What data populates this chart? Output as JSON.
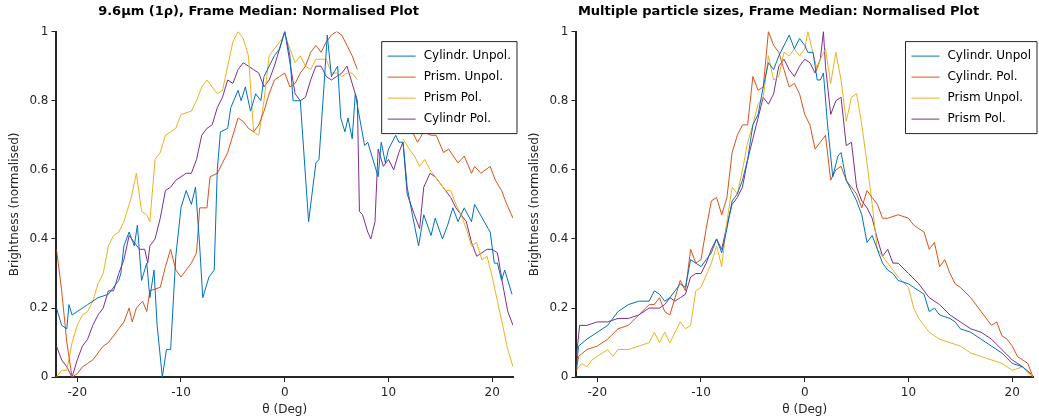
{
  "chart_data": [
    {
      "type": "line",
      "title": "9.6μm (1ρ), Frame Median: Normalised Plot",
      "xlabel": "θ (Deg)",
      "ylabel": "Brightness (normalised)",
      "xlim": [
        -22,
        22
      ],
      "xticks": [
        -20,
        -10,
        0,
        10,
        20
      ],
      "ylim": [
        0,
        1
      ],
      "yticks": [
        0,
        0.2,
        0.4,
        0.6,
        0.8,
        1
      ],
      "grid": false,
      "legend": "top right",
      "series": [
        {
          "name": "Cylindr. Unpol.",
          "color": "#0072bd",
          "x": [
            -22,
            -21.5,
            -21,
            -20.8,
            -20.5,
            -20,
            -19,
            -18,
            -17,
            -16,
            -15.8,
            -15.5,
            -15,
            -14.5,
            -14.2,
            -13.8,
            -13.3,
            -13,
            -12.6,
            -12.3,
            -11.8,
            -11.4,
            -11,
            -10.5,
            -10,
            -9.5,
            -9,
            -8.6,
            -8.2,
            -7.9,
            -7.3,
            -6.8,
            -6.5,
            -6.2,
            -5.5,
            -5.2,
            -4.5,
            -4.2,
            -3.8,
            -3.3,
            -2.8,
            -2.3,
            -2,
            -1,
            -0.5,
            0,
            0.5,
            0.8,
            1.5,
            2.3,
            3,
            3.3,
            3.8,
            4.1,
            4.5,
            5.1,
            5.4,
            5.8,
            6.1,
            6.5,
            6.8,
            7.7,
            8,
            8.8,
            9,
            9.3,
            9.7,
            10,
            10.7,
            11,
            11.4,
            11.8,
            12.3,
            12.9,
            13.4,
            14.1,
            14.5,
            15.2,
            15.7,
            16.2,
            16.7,
            17.3,
            18,
            18.3,
            19.6,
            19.8,
            20.2,
            20.5,
            20.9,
            21.2,
            21.9
          ],
          "values": [
            0.2,
            0.15,
            0.14,
            0.21,
            0.18,
            0.19,
            0.21,
            0.23,
            0.24,
            0.28,
            0.3,
            0.38,
            0.42,
            0.38,
            0.44,
            0.28,
            0.33,
            0.23,
            0.31,
            0.15,
            0,
            0.08,
            0.08,
            0.35,
            0.49,
            0.54,
            0.5,
            0.55,
            0.38,
            0.23,
            0.29,
            0.31,
            0.6,
            0.71,
            0.72,
            0.78,
            0.83,
            0.8,
            0.84,
            0.77,
            0.82,
            0.8,
            0.87,
            0.93,
            0.95,
            1,
            0.93,
            0.8,
            0.8,
            0.45,
            0.62,
            0.63,
            0.85,
            0.99,
            0.87,
            0.9,
            0.75,
            0.71,
            0.75,
            0.69,
            0.82,
            0.67,
            0.68,
            0.6,
            0.58,
            0.68,
            0.62,
            0.66,
            0.7,
            0.68,
            0.68,
            0.55,
            0.47,
            0.38,
            0.47,
            0.41,
            0.46,
            0.4,
            0.44,
            0.49,
            0.45,
            0.49,
            0.45,
            0.5,
            0.43,
            0.42,
            0.33,
            0.33,
            0.28,
            0.31,
            0.24
          ]
        },
        {
          "name": "Prism. Unpol.",
          "color": "#d95319",
          "x": [
            -22,
            -21.5,
            -21,
            -20.5,
            -20,
            -19.5,
            -19,
            -18.5,
            -18,
            -17.5,
            -17,
            -16.5,
            -16,
            -15.5,
            -15,
            -14.7,
            -14.3,
            -13.7,
            -13.3,
            -13,
            -12,
            -11.5,
            -11,
            -10.5,
            -10,
            -9.5,
            -9,
            -8.5,
            -8.2,
            -7.5,
            -7.2,
            -6.5,
            -6,
            -5.5,
            -5,
            -4.5,
            -4,
            -3.5,
            -3,
            -2.5,
            -2,
            -1.5,
            -1,
            -0.5,
            0,
            0.5,
            1,
            1.5,
            2,
            2.5,
            3,
            3.5,
            4,
            4.5,
            5,
            5.5,
            6,
            6.5,
            7,
            8,
            9,
            10,
            11,
            12.3,
            12.8,
            13.4,
            14.1,
            14.6,
            15.3,
            15.8,
            16.7,
            17.3,
            18,
            18.3,
            18.9,
            19.8,
            20.3,
            20.9,
            21.4,
            22
          ],
          "values": [
            0.37,
            0.25,
            0.1,
            0,
            0.01,
            0.03,
            0.04,
            0.05,
            0.07,
            0.09,
            0.1,
            0.12,
            0.14,
            0.16,
            0.2,
            0.16,
            0.2,
            0.22,
            0.19,
            0.25,
            0.26,
            0.32,
            0.37,
            0.31,
            0.29,
            0.31,
            0.33,
            0.36,
            0.49,
            0.49,
            0.58,
            0.59,
            0.62,
            0.65,
            0.7,
            0.75,
            0.74,
            0.72,
            0.71,
            0.73,
            0.77,
            0.82,
            0.86,
            0.87,
            0.88,
            0.84,
            0.85,
            0.88,
            0.9,
            0.94,
            0.96,
            0.94,
            0.97,
            0.99,
            1,
            0.99,
            0.96,
            0.93,
            0.89,
            null,
            null,
            null,
            null,
            0.71,
            0.68,
            0.71,
            0.7,
            0.7,
            0.65,
            0.66,
            0.62,
            0.64,
            0.59,
            0.61,
            0.59,
            0.61,
            0.57,
            0.54,
            0.5,
            0.46
          ]
        },
        {
          "name": "Prism Pol.",
          "color": "#edb120",
          "x": [
            -22,
            -21.5,
            -21,
            -20.5,
            -20,
            -19.5,
            -19,
            -18.5,
            -18,
            -17.5,
            -17,
            -16.5,
            -16,
            -15.5,
            -15,
            -14.8,
            -14.3,
            -13.8,
            -13.3,
            -13,
            -12.5,
            -12,
            -11.5,
            -11,
            -10.5,
            -10,
            -9,
            -8.5,
            -8,
            -7.5,
            -7,
            -6.5,
            -6,
            -5.5,
            -5,
            -4.5,
            -4,
            -3.5,
            -3,
            -2.5,
            -2,
            -1.5,
            -1,
            -0.5,
            0,
            0.5,
            1,
            1.5,
            2,
            2.5,
            3,
            3.5,
            4,
            4.5,
            5,
            5.5,
            6,
            6.5,
            7,
            8,
            9,
            10,
            11.4,
            12,
            12.5,
            13,
            13.5,
            14,
            14.5,
            15,
            15.5,
            16,
            16.5,
            17,
            17.5,
            18,
            18.5,
            19,
            19.5,
            20,
            20.5,
            21,
            21.5,
            22
          ],
          "values": [
            0,
            0.02,
            0.02,
            0.1,
            0.15,
            0.18,
            0.19,
            0.22,
            0.27,
            0.3,
            0.38,
            0.41,
            0.42,
            0.45,
            0.5,
            0.52,
            0.59,
            0.48,
            0.47,
            0.45,
            0.63,
            0.65,
            0.7,
            0.71,
            0.72,
            0.76,
            0.77,
            0.8,
            0.84,
            0.86,
            0.84,
            0.82,
            0.83,
            0.9,
            0.97,
            1,
            0.98,
            0.93,
            0.71,
            0.7,
            0.8,
            0.93,
            0.95,
            0.97,
            0.99,
            0.95,
            0.91,
            0.93,
            0.9,
            0.89,
            0.92,
            0.92,
            0.92,
            0.88,
            0.88,
            0.87,
            0.88,
            0.88,
            0.86,
            null,
            null,
            null,
            0.69,
            0.66,
            0.64,
            0.61,
            0.63,
            0.6,
            0.58,
            0.56,
            0.54,
            0.54,
            0.5,
            0.47,
            0.43,
            0.38,
            0.39,
            0.34,
            0.35,
            0.29,
            0.22,
            0.15,
            0.08,
            0.03
          ]
        },
        {
          "name": "Cylindr Pol.",
          "color": "#7e2f8e",
          "x": [
            -22,
            -21.5,
            -21,
            -20.5,
            -20,
            -19.5,
            -19,
            -18.5,
            -18,
            -17.5,
            -17,
            -16.5,
            -16,
            -15.5,
            -15,
            -14.5,
            -14,
            -13.5,
            -13.2,
            -13,
            -12.5,
            -12,
            -11.5,
            -11,
            -10.5,
            -10,
            -9.5,
            -9,
            -8.5,
            -8,
            -7.5,
            -7,
            -6.5,
            -6,
            -5.5,
            -5,
            -4.5,
            -4,
            -3.5,
            -3,
            -2.5,
            -2,
            -1.5,
            -1,
            -0.5,
            0,
            0.5,
            1,
            1.5,
            2,
            2.5,
            3,
            3.5,
            4,
            4.5,
            5,
            5.5,
            6,
            6.5,
            7,
            7.2,
            7.5,
            8,
            8.3,
            8.7,
            9,
            9.5,
            10,
            10.5,
            11,
            11.4,
            11.8,
            12.5,
            13,
            13.4,
            14,
            14.5,
            15,
            15.5,
            16,
            16.5,
            17,
            17.5,
            18,
            18.5,
            19,
            19.5,
            20,
            20.5,
            21,
            21.5,
            22
          ],
          "values": [
            0.09,
            0.05,
            0.03,
            0,
            0.05,
            0.09,
            0.11,
            0.15,
            0.18,
            0.2,
            0.25,
            0.25,
            0.3,
            0.34,
            0.41,
            0.39,
            0.37,
            0.37,
            0.33,
            0.38,
            0.4,
            0.46,
            0.54,
            0.55,
            0.57,
            0.58,
            0.59,
            0.59,
            0.63,
            0.7,
            0.72,
            0.73,
            0.78,
            0.81,
            0.86,
            0.85,
            0.89,
            0.91,
            0.9,
            0.89,
            0.88,
            0.84,
            0.86,
            0.9,
            0.95,
            1,
            0.91,
            0.82,
            0.8,
            0.81,
            0.86,
            0.9,
            0.9,
            0.87,
            0.86,
            0.87,
            0.88,
            0.9,
            0.85,
            0.8,
            0.48,
            0.47,
            0.42,
            0.4,
            0.45,
            0.66,
            0.61,
            0.63,
            0.6,
            0.65,
            0.68,
            0.53,
            0.47,
            0.43,
            0.55,
            0.59,
            0.58,
            0.56,
            0.54,
            0.52,
            0.49,
            0.47,
            0.45,
            0.39,
            0.35,
            0.36,
            0.37,
            0.37,
            0.36,
            0.27,
            0.19,
            0.15
          ]
        }
      ]
    },
    {
      "type": "line",
      "title": "Multiple particle sizes, Frame Median: Normalised Plot",
      "xlabel": "θ (Deg)",
      "ylabel": "Brightness (normalised)",
      "xlim": [
        -22,
        22
      ],
      "xticks": [
        -20,
        -10,
        0,
        10,
        20
      ],
      "ylim": [
        0,
        1
      ],
      "yticks": [
        0,
        0.2,
        0.4,
        0.6,
        0.8,
        1
      ],
      "grid": false,
      "legend": "top right",
      "series": [
        {
          "name": "Cylindr. Unpol",
          "color": "#0072bd",
          "x": [
            -22,
            -21.8,
            -21,
            -20,
            -19,
            -18,
            -17,
            -16,
            -15,
            -14.5,
            -14,
            -13.5,
            -13,
            -12,
            -11.5,
            -11,
            -10.5,
            -10,
            -9.5,
            -9,
            -8.5,
            -8,
            -7.5,
            -7,
            -6.5,
            -6,
            -5.5,
            -5,
            -4.5,
            -4,
            -3.5,
            -3,
            -2.5,
            -2,
            -1.5,
            -1,
            -0.5,
            0,
            0.3,
            0.8,
            1.2,
            1.5,
            1.8,
            2.2,
            2.7,
            3.2,
            3.5,
            4,
            4.5,
            5,
            5.5,
            6,
            6.5,
            7,
            7.5,
            8,
            8.5,
            9,
            10,
            10.5,
            11,
            11.5,
            12,
            12.5,
            13,
            14,
            14.5,
            15,
            16,
            17,
            18,
            19,
            20,
            21,
            21.8
          ],
          "values": [
            0.03,
            0.09,
            0.11,
            0.13,
            0.15,
            0.19,
            0.21,
            0.22,
            0.22,
            0.25,
            0.24,
            0.22,
            0.23,
            0.27,
            0.26,
            0.34,
            0.33,
            0.32,
            0.34,
            0.36,
            0.4,
            0.36,
            0.43,
            0.51,
            0.53,
            0.57,
            0.63,
            0.73,
            0.76,
            0.84,
            0.91,
            0.89,
            0.93,
            0.96,
            0.99,
            0.95,
            0.98,
            0.96,
            0.94,
            0.94,
            0.86,
            0.86,
            0.88,
            0.73,
            0.58,
            0.64,
            0.65,
            0.57,
            0.54,
            0.51,
            0.47,
            0.39,
            0.41,
            0.37,
            0.33,
            0.31,
            0.3,
            0.28,
            0.27,
            0.26,
            0.25,
            0.24,
            0.19,
            0.2,
            0.18,
            0.17,
            0.16,
            0.14,
            0.13,
            0.11,
            0.09,
            0.07,
            0.04,
            0.03,
            0.01
          ]
        },
        {
          "name": "Cylindr. Pol.",
          "color": "#d95319",
          "x": [
            -22,
            -21.8,
            -21,
            -20,
            -19,
            -18,
            -17,
            -16,
            -15,
            -14.5,
            -14,
            -13.5,
            -13,
            -12.5,
            -12,
            -11.5,
            -11,
            -10.5,
            -10,
            -9.5,
            -9,
            -8.5,
            -8,
            -7.5,
            -7,
            -6.5,
            -6,
            -5.5,
            -5,
            -4.5,
            -4,
            -3.5,
            -3,
            -2.5,
            -2,
            -1.5,
            -1,
            -0.5,
            0,
            0.5,
            1,
            1.5,
            2,
            2.5,
            3,
            3.5,
            4,
            4.5,
            5,
            5.5,
            6,
            6.5,
            7,
            7.5,
            8,
            9,
            10,
            10.5,
            11,
            11.5,
            12,
            12.5,
            13,
            13.5,
            14,
            14.5,
            15,
            16,
            17,
            18,
            18.5,
            19,
            19.5,
            20,
            20.5,
            21,
            21.5,
            22
          ],
          "values": [
            0.02,
            0.06,
            0.08,
            0.09,
            0.11,
            0.14,
            0.15,
            0.18,
            0.21,
            0.21,
            0.23,
            0.19,
            0.18,
            0.23,
            0.28,
            0.25,
            0.37,
            0.33,
            0.34,
            0.43,
            0.51,
            0.52,
            0.47,
            0.52,
            0.65,
            0.7,
            0.73,
            0.73,
            0.87,
            0.83,
            0.84,
            1,
            0.96,
            0.94,
            0.89,
            0.84,
            0.85,
            0.82,
            0.76,
            0.73,
            0.66,
            0.68,
            0.7,
            0.57,
            0.6,
            0.61,
            0.57,
            0.55,
            0.53,
            0.49,
            0.54,
            0.52,
            0.5,
            0.46,
            0.46,
            0.47,
            0.46,
            0.44,
            0.43,
            0.42,
            0.37,
            0.39,
            0.32,
            0.34,
            0.3,
            0.27,
            0.26,
            0.23,
            0.19,
            0.15,
            0.16,
            0.12,
            0.11,
            0.09,
            0.06,
            0.05,
            0.04,
            0
          ]
        },
        {
          "name": "Prism Unpol.",
          "color": "#edb120",
          "x": [
            -22,
            -21.5,
            -21,
            -20.5,
            -20,
            -19,
            -18.5,
            -18,
            -17,
            -16,
            -15,
            -14.5,
            -14,
            -13.5,
            -13,
            -12,
            -11.5,
            -11,
            -10.5,
            -10,
            -9,
            -8.5,
            -8,
            -7.5,
            -7,
            -6.5,
            -6,
            -5.5,
            -5,
            -4.5,
            -4,
            -3.5,
            -3,
            -2.5,
            -2,
            -1.5,
            -1,
            -0.5,
            0,
            0.3,
            0.7,
            1.2,
            1.5,
            2,
            2.5,
            3,
            3.5,
            4,
            4.5,
            5,
            5.5,
            6,
            6.5,
            7,
            7.5,
            8,
            9,
            10,
            10.5,
            11,
            12,
            12.5,
            13,
            14,
            15,
            16,
            17,
            18,
            19,
            20,
            21,
            22
          ],
          "values": [
            0.02,
            0.04,
            0.03,
            0.05,
            0.06,
            0.08,
            0.06,
            0.08,
            0.08,
            0.09,
            0.1,
            0.13,
            0.1,
            0.13,
            0.1,
            0.16,
            0.14,
            0.15,
            0.25,
            0.26,
            0.33,
            0.38,
            0.32,
            0.45,
            0.55,
            0.53,
            0.6,
            0.68,
            0.73,
            0.79,
            0.81,
            0.93,
            0.86,
            0.87,
            0.94,
            0.93,
            0.95,
            0.93,
            0.95,
            1,
            0.95,
            0.89,
            0.92,
            0.95,
            0.85,
            0.94,
            0.86,
            0.74,
            0.81,
            0.82,
            0.73,
            0.62,
            0.5,
            0.37,
            0.35,
            0.33,
            0.29,
            0.26,
            0.2,
            0.17,
            0.13,
            0.12,
            0.11,
            0.1,
            0.09,
            0.07,
            0.06,
            0.05,
            0.04,
            0.02,
            0.03,
            0
          ]
        },
        {
          "name": "Prism Pol.",
          "color": "#7e2f8e",
          "x": [
            -22,
            -21.7,
            -21,
            -20,
            -19,
            -18,
            -17,
            -16,
            -15,
            -14,
            -13.5,
            -13,
            -12.5,
            -12,
            -11.5,
            -11,
            -10.5,
            -10,
            -9.5,
            -9,
            -8.5,
            -8,
            -7.5,
            -7,
            -6.5,
            -6,
            -5.5,
            -5,
            -4.5,
            -4,
            -3.5,
            -3,
            -2.5,
            -2,
            -1.5,
            -1,
            -0.5,
            0,
            0.5,
            1,
            1.5,
            1.8,
            2,
            2.5,
            3,
            3.5,
            4,
            4.5,
            5,
            5.5,
            6,
            6.5,
            7,
            7.5,
            8,
            8.5,
            9,
            10,
            11,
            12,
            13,
            14,
            15,
            16,
            17,
            18,
            19,
            20,
            21,
            22
          ],
          "values": [
            0.06,
            0.15,
            0.15,
            0.16,
            0.16,
            0.17,
            0.17,
            0.18,
            0.2,
            0.2,
            0.21,
            0.23,
            0.22,
            0.23,
            0.24,
            0.29,
            0.3,
            0.3,
            0.33,
            0.37,
            0.4,
            0.37,
            0.44,
            0.5,
            0.52,
            0.55,
            0.63,
            0.69,
            0.75,
            0.81,
            0.79,
            0.82,
            0.9,
            0.92,
            0.89,
            0.87,
            0.9,
            0.92,
            0.91,
            0.88,
            0.92,
            1,
            0.9,
            0.76,
            0.8,
            0.81,
            0.67,
            0.68,
            0.55,
            0.51,
            0.49,
            0.46,
            0.4,
            0.35,
            0.37,
            0.33,
            0.33,
            0.3,
            0.27,
            0.23,
            0.21,
            0.18,
            0.16,
            0.14,
            0.13,
            0.11,
            0.08,
            0.05,
            0.03,
            0
          ]
        }
      ]
    }
  ]
}
